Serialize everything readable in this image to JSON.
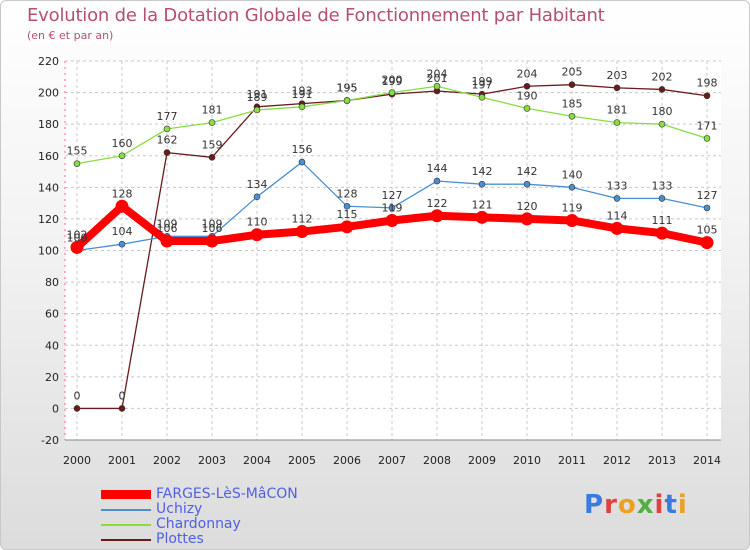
{
  "chart_data": {
    "type": "line",
    "title": "Evolution de la Dotation Globale de Fonctionnement par Habitant",
    "subtitle": "(en € et par an)",
    "x": [
      "2000",
      "2001",
      "2002",
      "2003",
      "2004",
      "2005",
      "2006",
      "2007",
      "2008",
      "2009",
      "2010",
      "2011",
      "2012",
      "2013",
      "2014"
    ],
    "yticks": [
      "-20",
      "0",
      "20",
      "40",
      "60",
      "80",
      "100",
      "120",
      "140",
      "160",
      "180",
      "200",
      "220"
    ],
    "ylim": [
      -20,
      220
    ],
    "grid": true,
    "legend_position": "bottom-left",
    "series": [
      {
        "name": "FARGES-LèS-MâCON",
        "color": "#ff0000",
        "values": [
          102,
          128,
          106,
          106,
          110,
          112,
          115,
          119,
          122,
          121,
          120,
          119,
          114,
          111,
          105
        ],
        "labels": [
          "102",
          "128",
          "106",
          "106",
          "110",
          "112",
          "115",
          "119",
          "122",
          "121",
          "120",
          "119",
          "114",
          "111",
          "105"
        ]
      },
      {
        "name": "Uchizy",
        "color": "#4a90d0",
        "values": [
          100,
          104,
          109,
          109,
          134,
          156,
          128,
          127,
          144,
          142,
          142,
          140,
          133,
          133,
          127
        ],
        "labels": [
          "100",
          "104",
          "109",
          "109",
          "134",
          "156",
          "128",
          "127",
          "144",
          "142",
          "142",
          "140",
          "133",
          "133",
          "127"
        ]
      },
      {
        "name": "Chardonnay",
        "color": "#88dd44",
        "values": [
          155,
          160,
          177,
          181,
          189,
          191,
          195,
          200,
          204,
          197,
          190,
          185,
          181,
          180,
          171
        ],
        "labels": [
          "155",
          "160",
          "177",
          "181",
          "189",
          "191",
          "195",
          "200",
          "204",
          "197",
          "190",
          "185",
          "181",
          "180",
          "171"
        ]
      },
      {
        "name": "Plottes",
        "color": "#6b1a1a",
        "values": [
          0,
          0,
          162,
          159,
          191,
          193,
          195,
          199,
          201,
          199,
          204,
          205,
          203,
          202,
          198
        ],
        "labels": [
          "0",
          "0",
          "162",
          "159",
          "191",
          "193",
          "195",
          "199",
          "201",
          "199",
          "204",
          "205",
          "203",
          "202",
          "198"
        ]
      }
    ]
  },
  "brand": {
    "logo_text": "Proxiti",
    "letters": [
      "P",
      "r",
      "o",
      "x",
      "i",
      "t",
      "i"
    ],
    "letter_colors": [
      "#3a7be0",
      "#e04040",
      "#f0a020",
      "#50b040",
      "#e04040",
      "#3a7be0",
      "#f0a020"
    ]
  }
}
